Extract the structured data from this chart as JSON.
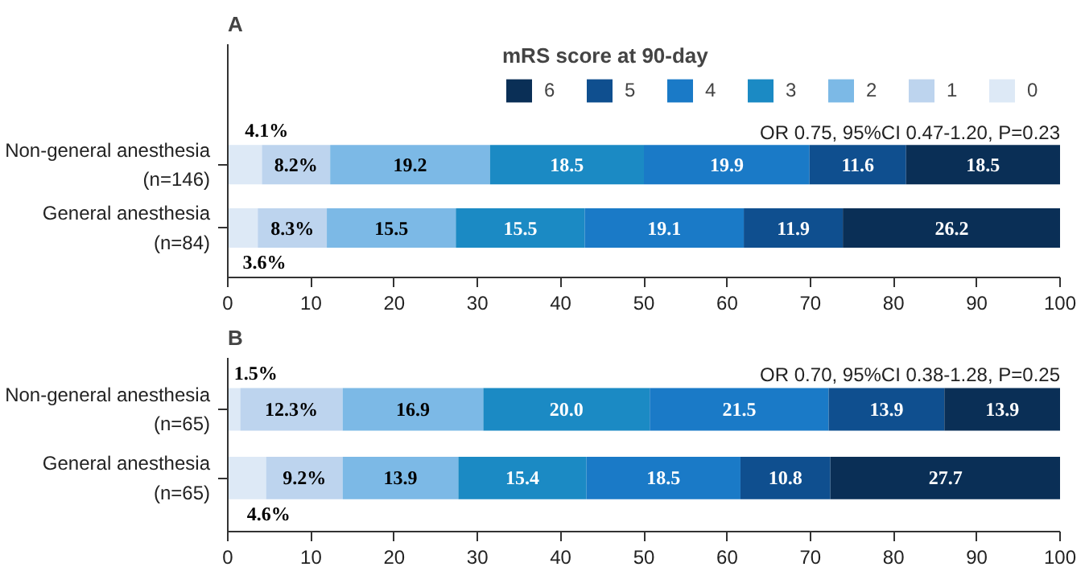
{
  "chart_data": [
    {
      "type": "bar",
      "orientation": "horizontal",
      "stacked": true,
      "title": "A",
      "legend_title": "mRS score at 90-day",
      "legend": "top right",
      "grid": false,
      "categories": [
        "Non-general anesthesia\n(n=146)",
        "General anesthesia\n(n=84)"
      ],
      "xlim": [
        0,
        100
      ],
      "xticks": [
        0,
        10,
        20,
        30,
        40,
        50,
        60,
        70,
        80,
        90,
        100
      ],
      "annotations": [
        "OR 0.75, 95%CI 0.47-1.20, P=0.23"
      ],
      "series": [
        {
          "name": "0",
          "color": "#dde9f6",
          "values": [
            4.1,
            3.6
          ],
          "value_labels": [
            "4.1%",
            "3.6%"
          ]
        },
        {
          "name": "1",
          "color": "#bdd4ee",
          "values": [
            8.2,
            8.3
          ],
          "value_labels": [
            "8.2%",
            "8.3%"
          ]
        },
        {
          "name": "2",
          "color": "#7cb9e6",
          "values": [
            19.2,
            15.5
          ],
          "value_labels": [
            "19.2",
            "15.5"
          ]
        },
        {
          "name": "3",
          "color": "#1b8ac4",
          "values": [
            18.5,
            15.5
          ],
          "value_labels": [
            "18.5",
            "15.5"
          ]
        },
        {
          "name": "4",
          "color": "#1a7ac7",
          "values": [
            19.9,
            19.1
          ],
          "value_labels": [
            "19.9",
            "19.1"
          ]
        },
        {
          "name": "5",
          "color": "#0f4f8f",
          "values": [
            11.6,
            11.9
          ],
          "value_labels": [
            "11.6",
            "11.9"
          ]
        },
        {
          "name": "6",
          "color": "#0a2f56",
          "values": [
            18.5,
            26.2
          ],
          "value_labels": [
            "18.5",
            "26.2"
          ]
        }
      ]
    },
    {
      "type": "bar",
      "orientation": "horizontal",
      "stacked": true,
      "title": "B",
      "grid": false,
      "categories": [
        "Non-general anesthesia\n(n=65)",
        "General anesthesia\n(n=65)"
      ],
      "xlim": [
        0,
        100
      ],
      "xticks": [
        0,
        10,
        20,
        30,
        40,
        50,
        60,
        70,
        80,
        90,
        100
      ],
      "annotations": [
        "OR 0.70, 95%CI 0.38-1.28, P=0.25"
      ],
      "series": [
        {
          "color": "#dde9f6",
          "values": [
            1.5,
            4.6
          ],
          "value_labels": [
            "1.5%",
            "4.6%"
          ]
        },
        {
          "color": "#bdd4ee",
          "values": [
            12.3,
            9.2
          ],
          "value_labels": [
            "12.3%",
            "9.2%"
          ]
        },
        {
          "color": "#7cb9e6",
          "values": [
            16.9,
            13.9
          ],
          "value_labels": [
            "16.9",
            "13.9"
          ]
        },
        {
          "color": "#1b8ac4",
          "values": [
            20.0,
            15.4
          ],
          "value_labels": [
            "20.0",
            "15.4"
          ]
        },
        {
          "color": "#1a7ac7",
          "values": [
            21.5,
            18.5
          ],
          "value_labels": [
            "21.5",
            "18.5"
          ]
        },
        {
          "color": "#0f4f8f",
          "values": [
            13.9,
            10.8
          ],
          "value_labels": [
            "13.9",
            "10.8"
          ]
        },
        {
          "color": "#0a2f56",
          "values": [
            13.9,
            27.7
          ],
          "value_labels": [
            "13.9",
            "27.7"
          ]
        }
      ]
    }
  ]
}
